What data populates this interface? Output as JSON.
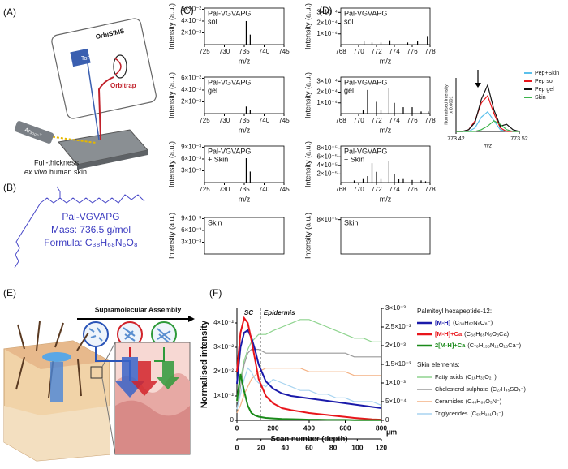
{
  "panel_labels": [
    "(A)",
    "(B)",
    "(C)",
    "(D)",
    "(E)",
    "(F)"
  ],
  "diagrams": {
    "a": {
      "instrument": "OrbiSIMS",
      "tof": "ToF",
      "orbitrap": "Orbitrap",
      "ion_source": "Ar₃₀₀₀⁺",
      "sample_line1": "Full-thickness",
      "sample_italic": "ex vivo",
      "sample_rest": "human skin"
    },
    "b": {
      "name": "Pal-VGVAPG",
      "mass": "Mass: 736.5 g/mol",
      "formula": "Formula: C₃₈H₆₈N₆O₈"
    },
    "e": {
      "title": "Supramolecular Assembly"
    }
  },
  "chart_data": [
    {
      "type": "spectrum",
      "annotation": [
        "Pal-VGVAPG",
        "sol"
      ],
      "xlabel": "m/z",
      "ylabel": "Intensity (a.u.)",
      "color": "#000000",
      "xlim": [
        725,
        745
      ],
      "xticks": [
        725,
        730,
        735,
        740,
        745
      ],
      "ylim": [
        0,
        0.062
      ],
      "yticks": [
        {
          "value": 0.02,
          "label": "2×10⁻²"
        },
        {
          "value": 0.04,
          "label": "4×10⁻²"
        },
        {
          "value": 0.06,
          "label": "6×10⁻²"
        }
      ],
      "x": [
        735.5,
        736.5
      ],
      "values": [
        0.04,
        0.017
      ]
    },
    {
      "type": "spectrum",
      "annotation": [
        "Pal-VGVAPG",
        "gel"
      ],
      "xlabel": "m/z",
      "ylabel": "Intensity (a.u.)",
      "color": "#000000",
      "xlim": [
        725,
        745
      ],
      "xticks": [
        725,
        730,
        735,
        740,
        745
      ],
      "ylim": [
        0,
        0.062
      ],
      "yticks": [
        {
          "value": 0.02,
          "label": "2×10⁻²"
        },
        {
          "value": 0.04,
          "label": "4×10⁻²"
        },
        {
          "value": 0.06,
          "label": "6×10⁻²"
        }
      ],
      "x": [
        735.5,
        736.5
      ],
      "values": [
        0.012,
        0.006
      ]
    },
    {
      "type": "spectrum",
      "annotation": [
        "Pal-VGVAPG",
        "+ Skin"
      ],
      "xlabel": "m/z",
      "ylabel": "Intensity (a.u.)",
      "color": "#000000",
      "xlim": [
        725,
        745
      ],
      "xticks": [
        725,
        730,
        735,
        740,
        745
      ],
      "ylim": [
        0,
        0.0093
      ],
      "yticks": [
        {
          "value": 0.003,
          "label": "3×10⁻³"
        },
        {
          "value": 0.006,
          "label": "6×10⁻³"
        },
        {
          "value": 0.009,
          "label": "9×10⁻³"
        }
      ],
      "x": [
        735.5,
        736.5
      ],
      "values": [
        0.0062,
        0.0028
      ]
    },
    {
      "type": "spectrum",
      "annotation": [
        "Skin"
      ],
      "ylabel": "Intensity (a.u.)",
      "color": "#000000",
      "xlim": [
        725,
        745
      ],
      "ylim": [
        0,
        0.0093
      ],
      "yticks": [
        {
          "value": 0.003,
          "label": "3×10⁻³"
        },
        {
          "value": 0.006,
          "label": "6×10⁻³"
        },
        {
          "value": 0.009,
          "label": "9×10⁻³"
        }
      ],
      "x": [],
      "values": []
    },
    {
      "type": "spectrum",
      "annotation": [
        "Pal-VGVAPG",
        "sol"
      ],
      "xlabel": "m/z",
      "ylabel": "Intensity (a.u.)",
      "color": "#000000",
      "xlim": [
        768,
        778
      ],
      "xticks": [
        768,
        770,
        772,
        774,
        776,
        778
      ],
      "ylim": [
        0,
        0.00034
      ],
      "yticks": [
        {
          "value": 0.0001,
          "label": "1×10⁻⁴"
        },
        {
          "value": 0.0002,
          "label": "2×10⁻⁴"
        },
        {
          "value": 0.0003,
          "label": "3×10⁻⁴"
        }
      ],
      "x": [
        770.6,
        771.5,
        772.5,
        773.5,
        775.5,
        776.6,
        777.7
      ],
      "values": [
        3e-05,
        2e-05,
        2e-05,
        4e-05,
        2e-05,
        3e-05,
        8e-05
      ]
    },
    {
      "type": "spectrum",
      "annotation": [
        "Pal-VGVAPG",
        "gel"
      ],
      "xlabel": "m/z",
      "ylabel": "Intensity (a.u.)",
      "color": "#000000",
      "xlim": [
        768,
        778
      ],
      "xticks": [
        768,
        770,
        772,
        774,
        776,
        778
      ],
      "ylim": [
        0,
        0.00034
      ],
      "yticks": [
        {
          "value": 0.0001,
          "label": "1×10⁻⁴"
        },
        {
          "value": 0.0002,
          "label": "2×10⁻⁴"
        },
        {
          "value": 0.0003,
          "label": "3×10⁻⁴"
        }
      ],
      "x": [
        770.5,
        771.0,
        772.0,
        772.5,
        773.4,
        774.0,
        775.0,
        776.0,
        777.0,
        777.8
      ],
      "values": [
        3e-05,
        0.00022,
        0.00011,
        3e-05,
        0.00024,
        0.0001,
        6e-05,
        6e-05,
        2e-05,
        2e-05
      ]
    },
    {
      "type": "spectrum",
      "annotation": [
        "Pal-VGVAPG",
        "+ Skin"
      ],
      "xlabel": "m/z",
      "ylabel": "Intensity (a.u.)",
      "color": "#000000",
      "xlim": [
        768,
        778
      ],
      "xticks": [
        768,
        770,
        772,
        774,
        776,
        778
      ],
      "ylim": [
        0,
        8.5e-05
      ],
      "yticks": [
        {
          "value": 2e-05,
          "label": "2×10⁻⁵"
        },
        {
          "value": 4e-05,
          "label": "4×10⁻⁵"
        },
        {
          "value": 6e-05,
          "label": "6×10⁻⁵"
        },
        {
          "value": 8e-05,
          "label": "8×10⁻⁵"
        }
      ],
      "x": [
        769.5,
        770.5,
        771.0,
        771.5,
        772.0,
        772.5,
        773.4,
        774.0,
        774.5,
        775.0,
        776.0,
        777.0,
        777.5
      ],
      "values": [
        5e-06,
        1e-05,
        1.5e-05,
        4.5e-05,
        2.5e-05,
        1e-05,
        5e-05,
        2e-05,
        8e-06,
        1e-05,
        6e-06,
        5e-06,
        3e-06
      ]
    },
    {
      "type": "spectrum",
      "annotation": [
        "Skin"
      ],
      "ylabel": "Intensity (a.u.)",
      "color": "#000000",
      "xlim": [
        768,
        778
      ],
      "ylim": [
        0,
        8.5e-05
      ],
      "yticks": [
        {
          "value": 8e-05,
          "label": "8×10⁻⁵"
        }
      ],
      "x": [],
      "values": []
    },
    {
      "type": "inset-line",
      "xlabel": "m/z",
      "ylabel": [
        "Normalised intensity",
        "x 0.0001"
      ],
      "xlim": [
        773.42,
        773.52
      ],
      "xticks": [
        773.42,
        773.52
      ],
      "ylim": [
        0,
        3
      ],
      "x": [
        773.42,
        773.43,
        773.44,
        773.45,
        773.46,
        773.47,
        773.48,
        773.49,
        773.5,
        773.51,
        773.52
      ],
      "series": [
        {
          "name": "Pep+Skin",
          "color": "#5bc0eb",
          "values": [
            0,
            0,
            0,
            0.2,
            0.8,
            1.1,
            0.6,
            0.1,
            0,
            0,
            0
          ]
        },
        {
          "name": "Pep sol",
          "color": "#e8151b",
          "values": [
            0,
            0,
            0.1,
            0.6,
            1.6,
            2.0,
            1.0,
            0.2,
            0,
            0,
            0
          ]
        },
        {
          "name": "Pep gel",
          "color": "#111111",
          "values": [
            0,
            0,
            0.1,
            0.5,
            1.8,
            2.6,
            1.2,
            0.3,
            0.4,
            0.1,
            0
          ]
        },
        {
          "name": "Skin",
          "color": "#3cb44b",
          "values": [
            0,
            0,
            0,
            0,
            0.1,
            0.3,
            0.6,
            0.4,
            0.1,
            0,
            0
          ]
        }
      ]
    },
    {
      "type": "dual-line",
      "xlabel": "Scan number (depth)",
      "ylabel": "Normalised intensity",
      "annotations": [
        "SC",
        "Epidermis"
      ],
      "vline": 130,
      "legend_title": "Palmitoyl hexapeptide-12:",
      "legend_title2": "Skin elements:",
      "xlim": [
        0,
        800
      ],
      "xticks": [
        0,
        200,
        400,
        600,
        800
      ],
      "x2lim": [
        0,
        120
      ],
      "x2ticks": [
        0,
        20,
        40,
        60,
        80,
        100,
        120
      ],
      "x2label": "µm",
      "ylim": [
        0,
        0.046
      ],
      "yticks": [
        0,
        {
          "value": 0.01,
          "label": "1×10⁻²"
        },
        {
          "value": 0.02,
          "label": "2×10⁻²"
        },
        {
          "value": 0.03,
          "label": "3×10⁻²"
        },
        {
          "value": 0.04,
          "label": "4×10⁻²"
        }
      ],
      "y2lim": [
        0,
        0.003
      ],
      "y2ticks": [
        0,
        {
          "value": 0.0005,
          "label": "5×10⁻⁴"
        },
        {
          "value": 0.001,
          "label": "1×10⁻³"
        },
        {
          "value": 0.0015,
          "label": "1.5×10⁻³"
        },
        {
          "value": 0.002,
          "label": "2×10⁻³"
        },
        {
          "value": 0.0025,
          "label": "2.5×10⁻³"
        },
        {
          "value": 0.003,
          "label": "3×10⁻³"
        }
      ],
      "x": [
        0,
        20,
        40,
        60,
        80,
        100,
        120,
        160,
        200,
        250,
        300,
        350,
        400,
        450,
        500,
        550,
        600,
        650,
        700,
        750,
        800
      ],
      "series": [
        {
          "name": "[M-H]",
          "formula": "(C₃₈H₆₇N₆O₈⁻)",
          "color": "#1a1aaa",
          "axis": "y",
          "values": [
            0.015,
            0.03,
            0.036,
            0.037,
            0.034,
            0.029,
            0.023,
            0.016,
            0.013,
            0.011,
            0.01,
            0.0095,
            0.009,
            0.0085,
            0.008,
            0.0075,
            0.007,
            0.0065,
            0.006,
            0.0055,
            0.005
          ]
        },
        {
          "name": "[M-H]+Ca",
          "formula": "(C₃₈H₆₅N₆O₈Ca)",
          "color": "#e8151b",
          "axis": "y",
          "values": [
            0.02,
            0.036,
            0.042,
            0.04,
            0.033,
            0.025,
            0.017,
            0.01,
            0.007,
            0.005,
            0.0042,
            0.0036,
            0.003,
            0.0026,
            0.0022,
            0.0018,
            0.0014,
            0.001,
            0.0007,
            0.0004,
            0.0003
          ]
        },
        {
          "name": "2[M-H]+Ca",
          "formula": "(C₇₆H₁₃₃N₁₂O₁₆Ca⁻)",
          "color": "#1a8a1a",
          "axis": "y",
          "values": [
            0.008,
            0.019,
            0.012,
            0.006,
            0.003,
            0.002,
            0.0015,
            0.001,
            0.0008,
            0.0006,
            0.0005,
            0.0004,
            0.0003,
            0.0003,
            0.0002,
            0.0002,
            0.0002,
            0.0001,
            0.0001,
            0.0001,
            0.0001
          ]
        },
        {
          "name": "Fatty acids",
          "formula": "(C₁₆H₃₁O₂⁻)",
          "color": "#8fd48f",
          "axis": "y2",
          "values": [
            0.0005,
            0.0011,
            0.0016,
            0.0019,
            0.0021,
            0.0022,
            0.0023,
            0.0023,
            0.0024,
            0.0025,
            0.0026,
            0.0027,
            0.0027,
            0.0026,
            0.0025,
            0.0024,
            0.0023,
            0.0022,
            0.0022,
            0.0021,
            0.0021
          ]
        },
        {
          "name": "Cholesterol sulphate",
          "formula": "(C₂₇H₄₅SO₄⁻)",
          "color": "#9a9a9a",
          "axis": "y2",
          "values": [
            0.0003,
            0.0009,
            0.0015,
            0.0018,
            0.0019,
            0.0019,
            0.0019,
            0.0018,
            0.0018,
            0.0018,
            0.0018,
            0.0018,
            0.0018,
            0.0018,
            0.0018,
            0.0018,
            0.0018,
            0.0017,
            0.0017,
            0.0017,
            0.0017
          ]
        },
        {
          "name": "Ceramides",
          "formula": "(C₄₄H₈₆O₅N⁻)",
          "color": "#f4b183",
          "axis": "y2",
          "values": [
            0.0002,
            0.0004,
            0.0007,
            0.0009,
            0.0011,
            0.0012,
            0.0013,
            0.0014,
            0.0014,
            0.0014,
            0.0014,
            0.0014,
            0.0013,
            0.0013,
            0.0013,
            0.0013,
            0.0013,
            0.0012,
            0.0012,
            0.0012,
            0.0012
          ]
        },
        {
          "name": "Triglycerides",
          "formula": "(C₅₅H₁₀₁O₆⁻)",
          "color": "#a8d4f0",
          "axis": "y2",
          "values": [
            0.0003,
            0.0007,
            0.0011,
            0.0014,
            0.0013,
            0.0011,
            0.001,
            0.0009,
            0.0011,
            0.001,
            0.0009,
            0.0008,
            0.0008,
            0.0007,
            0.0007,
            0.0006,
            0.0006,
            0.0005,
            0.0005,
            0.0005,
            0.0004
          ]
        }
      ]
    }
  ]
}
